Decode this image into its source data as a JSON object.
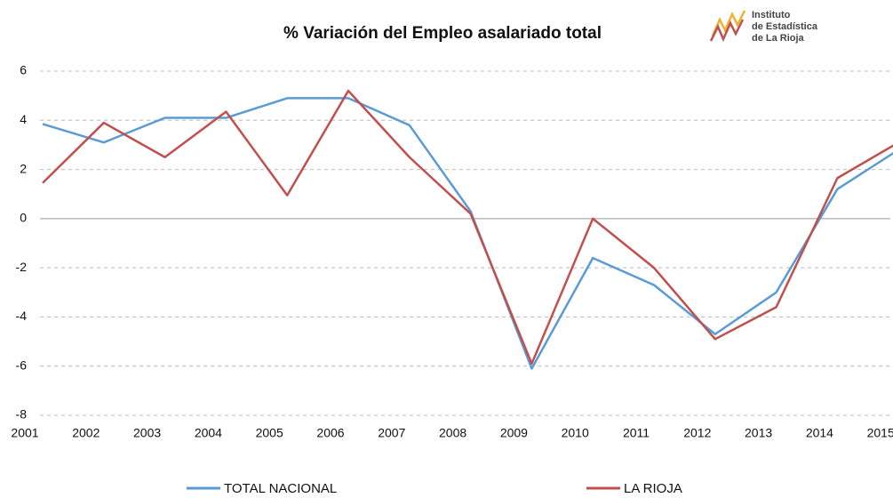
{
  "chart_data": {
    "type": "line",
    "title": "% Variación del Empleo asalariado total",
    "logo": [
      "Instituto",
      "de Estadística",
      "de La Rioja"
    ],
    "categories": [
      "2001",
      "2002",
      "2003",
      "2004",
      "2005",
      "2006",
      "2007",
      "2008",
      "2009",
      "2010",
      "2011",
      "2012",
      "2013",
      "2014",
      "2015"
    ],
    "series": [
      {
        "name": "TOTAL NACIONAL",
        "color": "#5b9bd5",
        "values": [
          3.85,
          3.1,
          4.1,
          4.1,
          4.9,
          4.9,
          3.8,
          0.3,
          -6.1,
          -1.6,
          -2.7,
          -4.7,
          -3.0,
          1.2,
          2.8
        ]
      },
      {
        "name": "LA RIOJA",
        "color": "#c0504d",
        "values": [
          1.45,
          3.9,
          2.5,
          4.35,
          0.95,
          5.2,
          2.5,
          0.2,
          -5.9,
          0.0,
          -2.0,
          -4.9,
          -3.6,
          1.65,
          3.1
        ]
      }
    ],
    "ylim": [
      -8,
      6
    ],
    "yticks": [
      -8,
      -6,
      -4,
      -2,
      0,
      2,
      4,
      6
    ],
    "grid": true
  }
}
